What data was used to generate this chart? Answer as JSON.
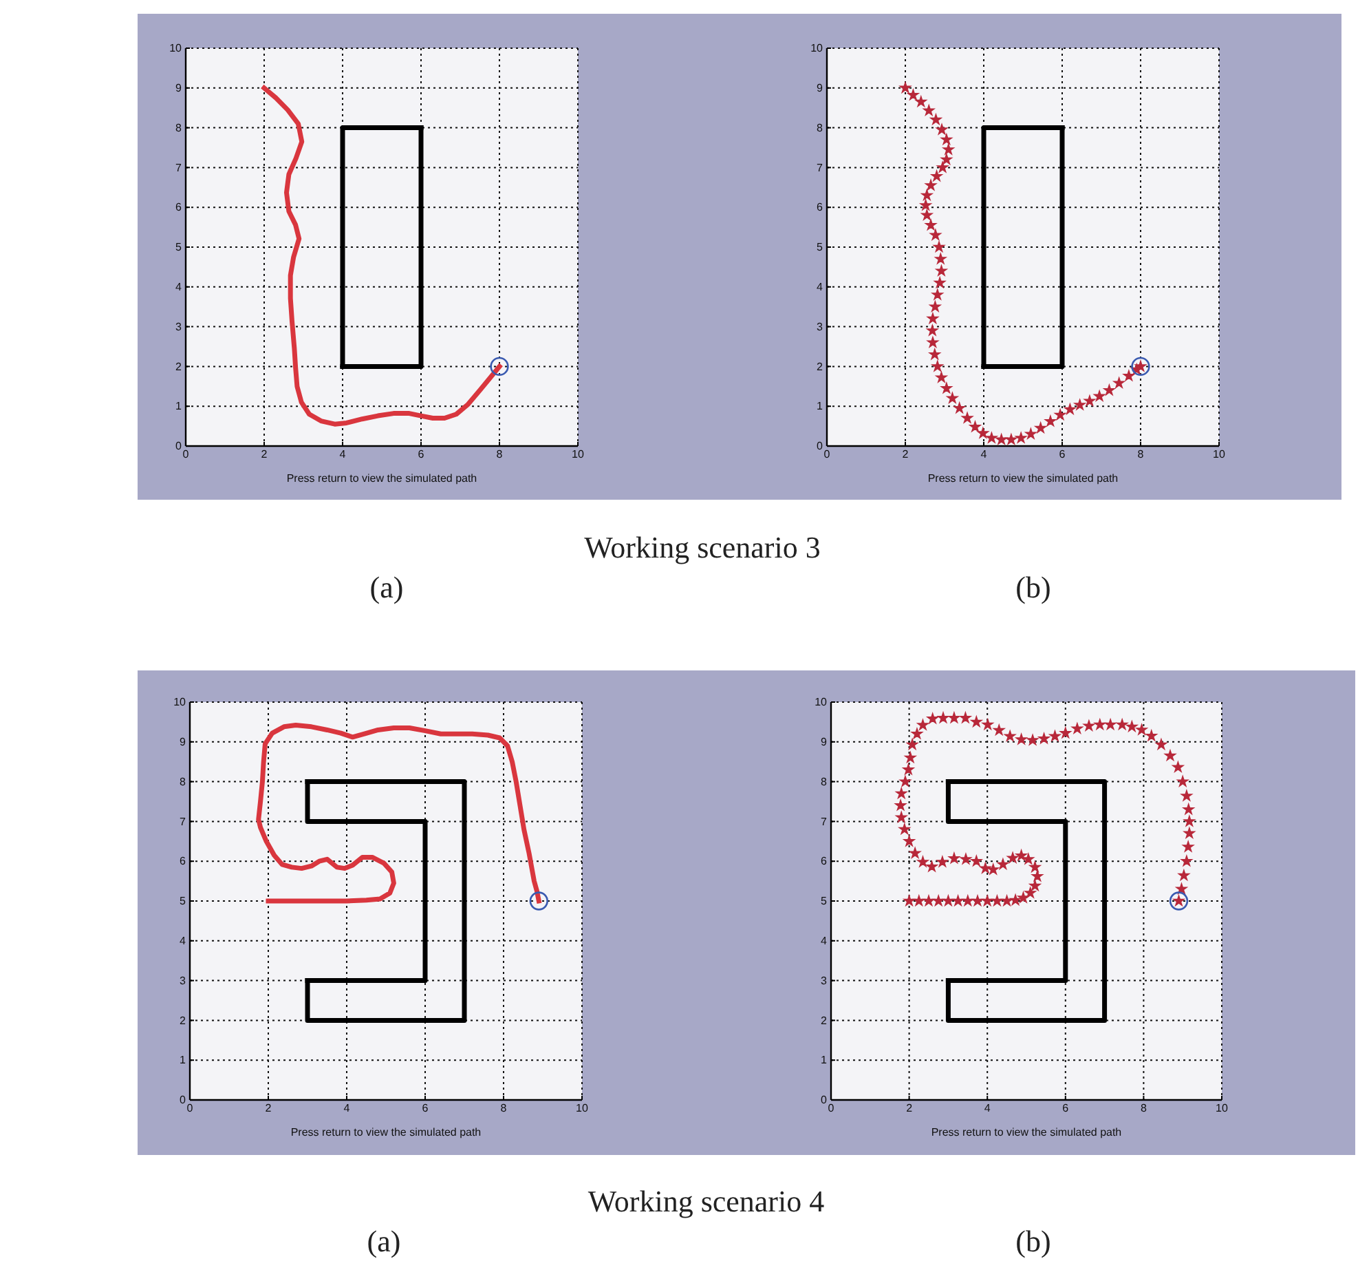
{
  "chart_data": [
    {
      "type": "line",
      "xlabel": "Press return to view the simulated path",
      "xlim": [
        0,
        10
      ],
      "ylim": [
        0,
        10
      ],
      "xticks": [
        0,
        2,
        4,
        6,
        8,
        10
      ],
      "yticks": [
        0,
        1,
        2,
        3,
        4,
        5,
        6,
        7,
        8,
        9,
        10
      ],
      "grid": true,
      "annotations": [
        "Working scenario 3",
        "(a)"
      ],
      "series": [
        {
          "type": "line",
          "color": "#000000",
          "x": [
            4,
            6,
            6
          ],
          "values": [
            2,
            2,
            8
          ]
        },
        {
          "type": "line",
          "color": "#000000",
          "x": [
            6,
            4,
            4
          ],
          "values": [
            8,
            8,
            2
          ]
        },
        {
          "type": "line",
          "color": "#d9363e",
          "x": [
            2.0,
            2.3,
            2.6,
            2.87,
            2.96,
            2.81,
            2.63,
            2.57,
            2.63,
            2.8,
            2.89,
            2.75,
            2.67,
            2.67,
            2.71,
            2.77,
            2.8,
            2.84,
            2.95,
            3.15,
            3.45,
            3.8,
            4.1,
            4.5,
            4.9,
            5.3,
            5.7,
            6.0,
            6.3,
            6.6,
            6.9,
            7.2,
            7.5,
            7.75,
            8.0
          ],
          "values": [
            9.0,
            8.75,
            8.45,
            8.1,
            7.65,
            7.23,
            6.83,
            6.37,
            5.9,
            5.56,
            5.21,
            4.75,
            4.29,
            3.71,
            3.14,
            2.45,
            1.98,
            1.5,
            1.1,
            0.8,
            0.63,
            0.55,
            0.58,
            0.68,
            0.76,
            0.82,
            0.82,
            0.76,
            0.7,
            0.7,
            0.8,
            1.05,
            1.4,
            1.7,
            2.0
          ]
        },
        {
          "type": "scatter",
          "marker": "circle",
          "color": "#3a5ab0",
          "x": [
            8
          ],
          "values": [
            2
          ]
        }
      ]
    },
    {
      "type": "line",
      "xlabel": "Press return to view the simulated path",
      "xlim": [
        0,
        10
      ],
      "ylim": [
        0,
        10
      ],
      "xticks": [
        0,
        2,
        4,
        6,
        8,
        10
      ],
      "yticks": [
        0,
        1,
        2,
        3,
        4,
        5,
        6,
        7,
        8,
        9,
        10
      ],
      "grid": true,
      "annotations": [
        "(b)"
      ],
      "series": [
        {
          "type": "line",
          "color": "#000000",
          "x": [
            4,
            6,
            6
          ],
          "values": [
            2,
            2,
            8
          ]
        },
        {
          "type": "line",
          "color": "#000000",
          "x": [
            6,
            4,
            4
          ],
          "values": [
            8,
            8,
            2
          ]
        },
        {
          "type": "scatter",
          "marker": "star",
          "color": "#b8283a",
          "x": [
            2.0,
            2.2,
            2.4,
            2.6,
            2.78,
            2.93,
            3.05,
            3.1,
            3.05,
            2.95,
            2.8,
            2.65,
            2.55,
            2.52,
            2.55,
            2.65,
            2.77,
            2.86,
            2.9,
            2.92,
            2.88,
            2.82,
            2.76,
            2.7,
            2.69,
            2.7,
            2.75,
            2.82,
            2.92,
            3.05,
            3.2,
            3.38,
            3.58,
            3.78,
            3.98,
            4.2,
            4.45,
            4.7,
            4.95,
            5.2,
            5.45,
            5.7,
            5.95,
            6.2,
            6.45,
            6.7,
            6.95,
            7.2,
            7.45,
            7.7,
            7.9,
            8.0
          ],
          "values": [
            9.0,
            8.82,
            8.65,
            8.43,
            8.2,
            7.95,
            7.7,
            7.45,
            7.2,
            7.0,
            6.78,
            6.55,
            6.3,
            6.05,
            5.8,
            5.55,
            5.3,
            5.0,
            4.7,
            4.4,
            4.1,
            3.8,
            3.5,
            3.2,
            2.9,
            2.6,
            2.3,
            2.0,
            1.72,
            1.45,
            1.2,
            0.95,
            0.7,
            0.48,
            0.32,
            0.2,
            0.16,
            0.16,
            0.2,
            0.3,
            0.45,
            0.62,
            0.78,
            0.92,
            1.03,
            1.13,
            1.25,
            1.4,
            1.58,
            1.76,
            1.92,
            2.0
          ]
        },
        {
          "type": "scatter",
          "marker": "circle",
          "color": "#3a5ab0",
          "x": [
            8
          ],
          "values": [
            2
          ]
        }
      ]
    },
    {
      "type": "line",
      "xlabel": "Press return to view the simulated path",
      "xlim": [
        0,
        10
      ],
      "ylim": [
        0,
        10
      ],
      "xticks": [
        0,
        2,
        4,
        6,
        8,
        10
      ],
      "yticks": [
        0,
        1,
        2,
        3,
        4,
        5,
        6,
        7,
        8,
        9,
        10
      ],
      "grid": true,
      "annotations": [
        "Working scenario 4",
        "(a)"
      ],
      "series": [
        {
          "type": "line",
          "color": "#000000",
          "x": [
            3,
            7,
            7,
            3,
            3
          ],
          "values": [
            8,
            8,
            2,
            2,
            3
          ]
        },
        {
          "type": "line",
          "color": "#000000",
          "x": [
            3,
            6,
            6,
            3,
            3
          ],
          "values": [
            3,
            3,
            7,
            7,
            8
          ]
        },
        {
          "type": "line",
          "color": "#d9363e",
          "x": [
            2.0,
            2.5,
            3.0,
            3.5,
            4.0,
            4.5,
            4.85,
            5.1,
            5.2,
            5.15,
            4.95,
            4.65,
            4.4,
            4.15,
            3.95,
            3.75,
            3.5,
            3.3,
            3.1,
            2.85,
            2.6,
            2.35,
            2.15,
            1.95,
            1.8,
            1.75,
            1.8,
            1.85,
            1.88,
            1.92,
            2.1,
            2.4,
            2.7,
            3.1,
            3.5,
            3.85,
            4.15,
            4.45,
            4.8,
            5.2,
            5.6,
            6.0,
            6.4,
            6.8,
            7.2,
            7.6,
            7.9,
            8.1,
            8.22,
            8.32,
            8.42,
            8.52,
            8.65,
            8.78,
            8.85,
            8.9
          ],
          "values": [
            5.0,
            5.0,
            5.0,
            5.0,
            5.0,
            5.02,
            5.05,
            5.2,
            5.45,
            5.73,
            5.95,
            6.1,
            6.1,
            5.9,
            5.82,
            5.85,
            6.05,
            6.0,
            5.88,
            5.82,
            5.85,
            5.92,
            6.15,
            6.5,
            6.85,
            7.05,
            7.5,
            8.0,
            8.5,
            8.95,
            9.22,
            9.38,
            9.42,
            9.38,
            9.3,
            9.22,
            9.12,
            9.2,
            9.3,
            9.35,
            9.35,
            9.28,
            9.2,
            9.2,
            9.2,
            9.17,
            9.1,
            8.9,
            8.5,
            8.0,
            7.4,
            6.8,
            6.2,
            5.5,
            5.25,
            5.0
          ]
        },
        {
          "type": "scatter",
          "marker": "circle",
          "color": "#3a5ab0",
          "x": [
            8.9
          ],
          "values": [
            5
          ]
        }
      ]
    },
    {
      "type": "line",
      "xlabel": "Press return to view the simulated path",
      "xlim": [
        0,
        10
      ],
      "ylim": [
        0,
        10
      ],
      "xticks": [
        0,
        2,
        4,
        6,
        8,
        10
      ],
      "yticks": [
        0,
        1,
        2,
        3,
        4,
        5,
        6,
        7,
        8,
        9,
        10
      ],
      "grid": true,
      "annotations": [
        "(b)"
      ],
      "series": [
        {
          "type": "line",
          "color": "#000000",
          "x": [
            3,
            7,
            7,
            3,
            3
          ],
          "values": [
            8,
            8,
            2,
            2,
            3
          ]
        },
        {
          "type": "line",
          "color": "#000000",
          "x": [
            3,
            6,
            6,
            3,
            3
          ],
          "values": [
            3,
            3,
            7,
            7,
            8
          ]
        },
        {
          "type": "scatter",
          "marker": "star",
          "color": "#b8283a",
          "x": [
            2.0,
            2.25,
            2.5,
            2.75,
            3.0,
            3.25,
            3.5,
            3.75,
            4.0,
            4.25,
            4.5,
            4.72,
            4.92,
            5.1,
            5.22,
            5.28,
            5.22,
            5.05,
            4.87,
            4.65,
            4.4,
            4.15,
            3.95,
            3.72,
            3.45,
            3.15,
            2.85,
            2.58,
            2.35,
            2.15,
            2.0,
            1.88,
            1.8,
            1.78,
            1.8,
            1.9,
            1.98,
            2.03,
            2.08,
            2.2,
            2.35,
            2.6,
            2.87,
            3.15,
            3.44,
            3.72,
            4.01,
            4.3,
            4.58,
            4.87,
            5.16,
            5.45,
            5.73,
            6.0,
            6.3,
            6.6,
            6.88,
            7.15,
            7.45,
            7.7,
            7.95,
            8.2,
            8.45,
            8.68,
            8.88,
            9.0,
            9.1,
            9.15,
            9.17,
            9.17,
            9.14,
            9.1,
            9.03,
            8.97,
            8.9
          ],
          "values": [
            5.0,
            5.0,
            5.0,
            5.0,
            5.0,
            5.0,
            5.0,
            5.0,
            5.0,
            5.0,
            5.0,
            5.02,
            5.08,
            5.2,
            5.38,
            5.62,
            5.85,
            6.05,
            6.14,
            6.08,
            5.92,
            5.79,
            5.82,
            6.0,
            6.05,
            6.07,
            5.98,
            5.86,
            5.98,
            6.2,
            6.5,
            6.8,
            7.1,
            7.4,
            7.7,
            8.0,
            8.3,
            8.6,
            8.93,
            9.2,
            9.42,
            9.58,
            9.6,
            9.6,
            9.6,
            9.5,
            9.43,
            9.29,
            9.14,
            9.06,
            9.04,
            9.08,
            9.14,
            9.22,
            9.33,
            9.4,
            9.43,
            9.43,
            9.43,
            9.38,
            9.3,
            9.15,
            8.93,
            8.65,
            8.36,
            8.0,
            7.64,
            7.3,
            7.0,
            6.7,
            6.36,
            6.0,
            5.64,
            5.3,
            5.0
          ]
        },
        {
          "type": "scatter",
          "marker": "circle",
          "color": "#3a5ab0",
          "x": [
            8.9
          ],
          "values": [
            5
          ]
        }
      ]
    }
  ]
}
